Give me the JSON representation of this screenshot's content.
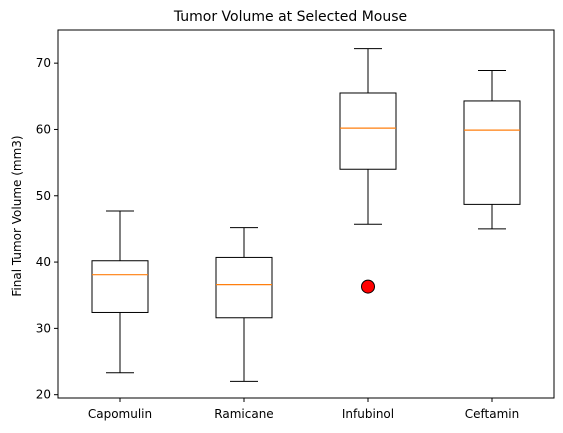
{
  "chart_data": {
    "type": "box",
    "title": "Tumor Volume at Selected Mouse",
    "xlabel": "",
    "ylabel": "Final Tumor Volume (mm3)",
    "ylim": [
      19.5,
      75
    ],
    "yticks": [
      20,
      30,
      40,
      50,
      60,
      70
    ],
    "grid": false,
    "categories": [
      "Capomulin",
      "Ramicane",
      "Infubinol",
      "Ceftamin"
    ],
    "boxes": [
      {
        "whisker_low": 23.3,
        "q1": 32.4,
        "median": 38.1,
        "q3": 40.2,
        "whisker_high": 47.7,
        "outliers": []
      },
      {
        "whisker_low": 22.0,
        "q1": 31.6,
        "median": 36.6,
        "q3": 40.7,
        "whisker_high": 45.2,
        "outliers": []
      },
      {
        "whisker_low": 45.7,
        "q1": 54.0,
        "median": 60.2,
        "q3": 65.5,
        "whisker_high": 72.2,
        "outliers": [
          36.3
        ]
      },
      {
        "whisker_low": 45.0,
        "q1": 48.7,
        "median": 59.9,
        "q3": 64.3,
        "whisker_high": 68.9,
        "outliers": []
      }
    ],
    "colors": {
      "box": "#000000",
      "median": "#ff7f0e",
      "outlier_fill": "#ff0000",
      "outlier_edge": "#000000"
    }
  }
}
